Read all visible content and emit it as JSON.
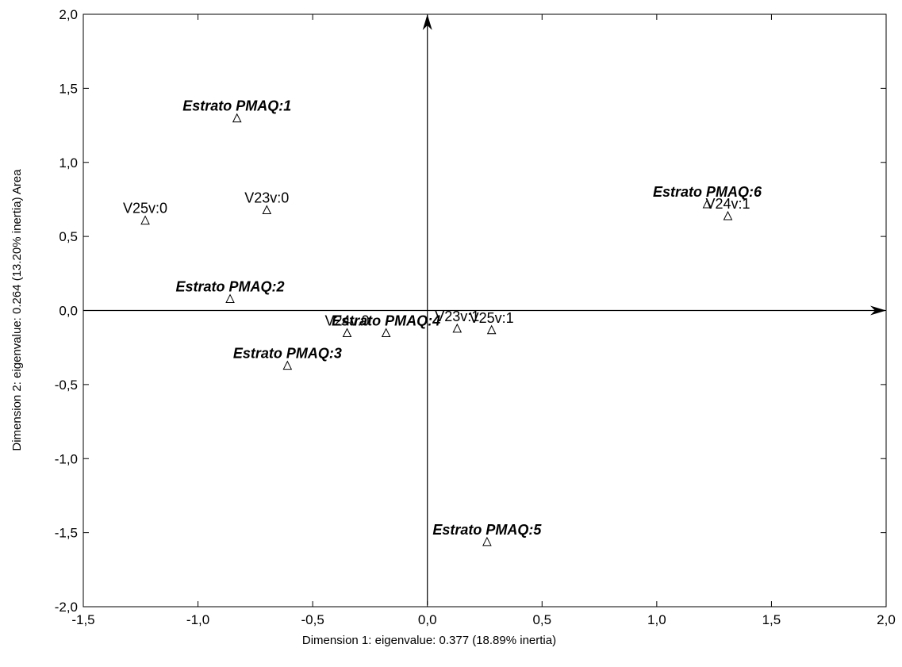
{
  "chart_data": {
    "type": "scatter",
    "xlabel": "Dimension 1: eigenvalue: 0.377 (18.89%  inertia)",
    "ylabel": "Dimension 2: eigenvalue: 0.264 (13.20% inertia) Area",
    "xlim": [
      -1.5,
      2.0
    ],
    "ylim": [
      -2.0,
      2.0
    ],
    "x_ticks": [
      "-1,5",
      "-1,0",
      "-0,5",
      "0,0",
      "0,5",
      "1,0",
      "1,5",
      "2,0"
    ],
    "y_ticks": [
      "2,0",
      "1,5",
      "1,0",
      "0,5",
      "0,0",
      "-0,5",
      "-1,0",
      "-1,5",
      "-2,0"
    ],
    "grid": false,
    "marker": "open-triangle",
    "points": [
      {
        "label": "Estrato PMAQ:1",
        "x": -0.83,
        "y": 1.3,
        "supplementary": true
      },
      {
        "label": "Estrato PMAQ:2",
        "x": -0.86,
        "y": 0.08,
        "supplementary": true
      },
      {
        "label": "Estrato PMAQ:3",
        "x": -0.61,
        "y": -0.37,
        "supplementary": true
      },
      {
        "label": "Estrato PMAQ:4",
        "x": -0.18,
        "y": -0.15,
        "supplementary": true
      },
      {
        "label": "Estrato PMAQ:5",
        "x": 0.26,
        "y": -1.56,
        "supplementary": true
      },
      {
        "label": "Estrato PMAQ:6",
        "x": 1.22,
        "y": 0.72,
        "supplementary": true
      },
      {
        "label": "V25v:0",
        "x": -1.23,
        "y": 0.61,
        "supplementary": false
      },
      {
        "label": "V23v:0",
        "x": -0.7,
        "y": 0.68,
        "supplementary": false
      },
      {
        "label": "V24v:0",
        "x": -0.35,
        "y": -0.15,
        "supplementary": false
      },
      {
        "label": "V23v:1",
        "x": 0.13,
        "y": -0.12,
        "supplementary": false
      },
      {
        "label": "V25v:1",
        "x": 0.28,
        "y": -0.13,
        "supplementary": false
      },
      {
        "label": "V24v:1",
        "x": 1.31,
        "y": 0.64,
        "supplementary": false
      }
    ]
  }
}
